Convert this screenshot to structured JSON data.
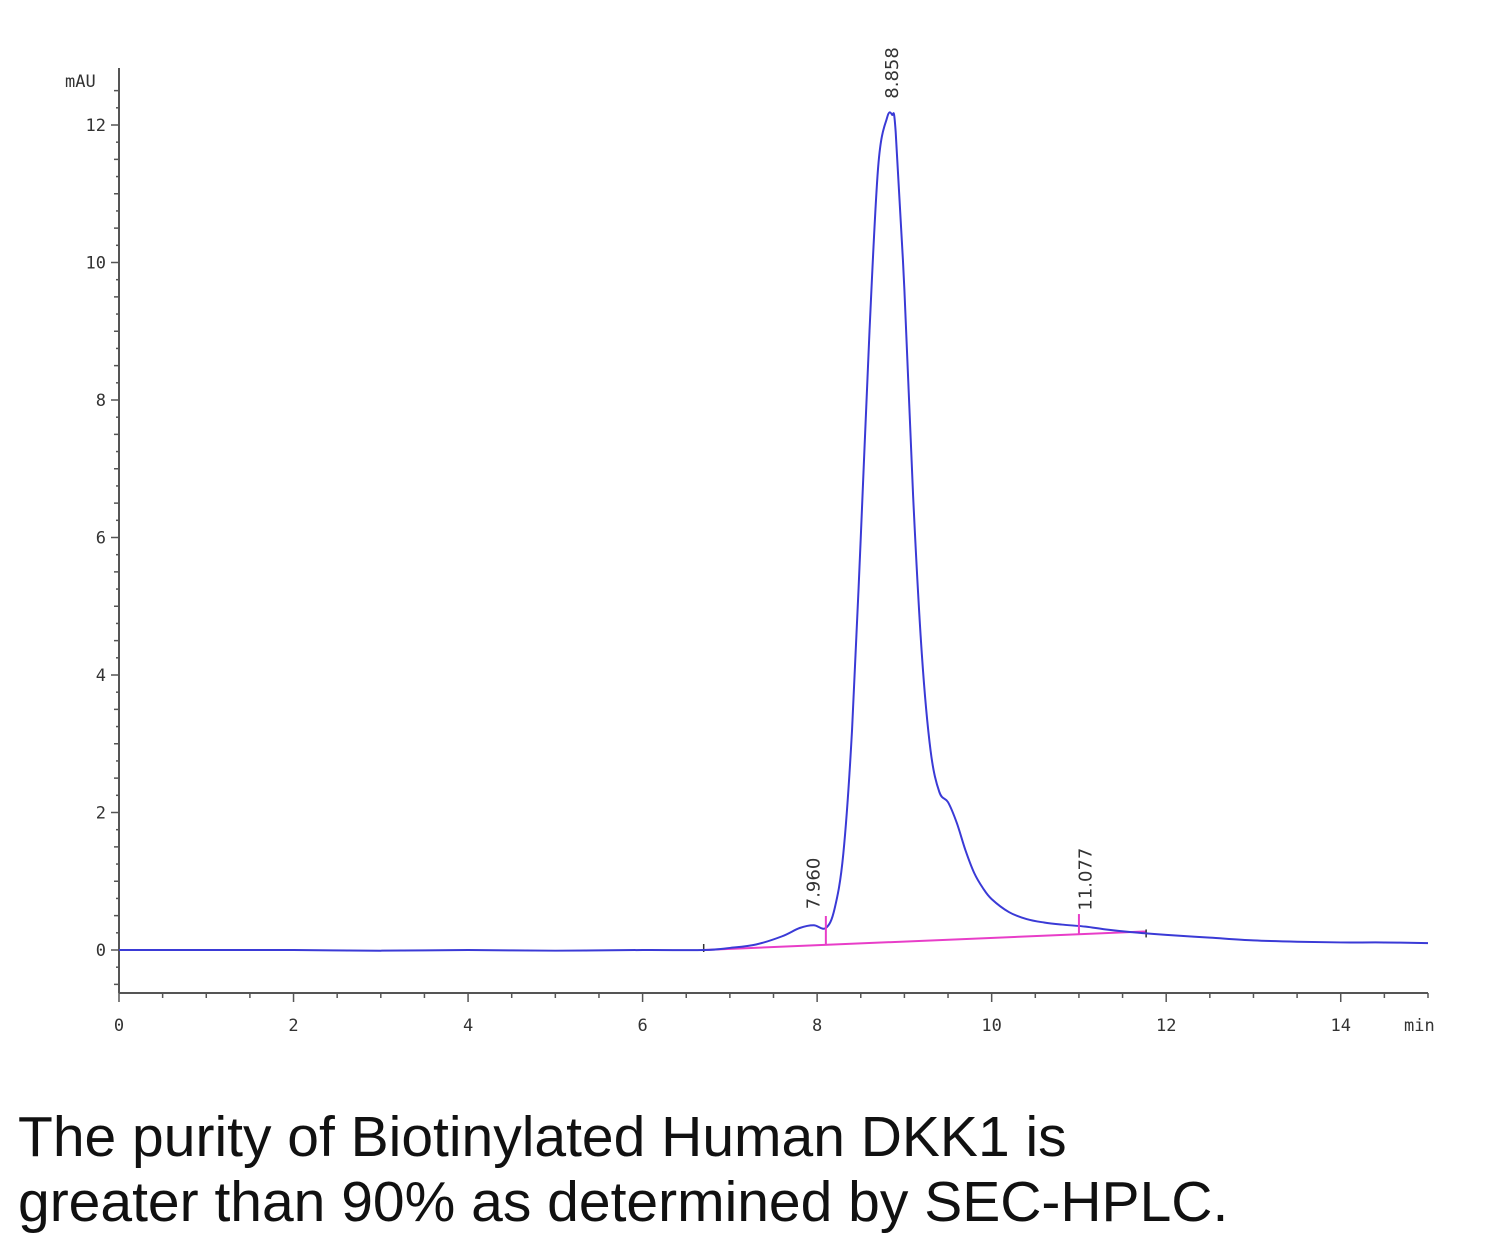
{
  "chart_data": {
    "type": "line",
    "ylabel": "mAU",
    "xlabel": "min",
    "xlim": [
      0,
      15
    ],
    "ylim": [
      -0.6,
      12.6
    ],
    "x_ticks": [
      0,
      2,
      4,
      6,
      8,
      10,
      12,
      14
    ],
    "y_ticks": [
      0,
      2,
      4,
      6,
      8,
      10,
      12
    ],
    "grid": false,
    "series": [
      {
        "color": "#3a3ad6",
        "x": [
          0,
          1,
          2,
          3,
          4,
          5,
          6,
          6.7,
          7.0,
          7.3,
          7.6,
          7.8,
          7.96,
          8.1,
          8.2,
          8.3,
          8.4,
          8.5,
          8.6,
          8.7,
          8.8,
          8.858,
          8.9,
          9.0,
          9.1,
          9.2,
          9.3,
          9.4,
          9.5,
          9.6,
          9.7,
          9.8,
          9.9,
          10.0,
          10.2,
          10.4,
          10.6,
          10.8,
          11.077,
          11.3,
          11.6,
          12.0,
          12.5,
          13.0,
          13.5,
          14.0,
          14.5,
          15.0
        ],
        "y": [
          0.0,
          0.0,
          0.0,
          -0.01,
          0.0,
          -0.01,
          0.0,
          0.0,
          0.03,
          0.08,
          0.2,
          0.32,
          0.36,
          0.32,
          0.6,
          1.4,
          3.2,
          6.0,
          9.0,
          11.4,
          12.1,
          12.15,
          11.9,
          9.6,
          6.6,
          4.3,
          2.9,
          2.3,
          2.15,
          1.85,
          1.45,
          1.12,
          0.9,
          0.74,
          0.55,
          0.45,
          0.4,
          0.37,
          0.34,
          0.3,
          0.26,
          0.22,
          0.18,
          0.14,
          0.12,
          0.11,
          0.11,
          0.1
        ]
      }
    ],
    "baseline": {
      "color": "#e83ec8",
      "x": [
        6.7,
        11.77
      ],
      "y": [
        0.0,
        0.27
      ]
    },
    "peaks": [
      {
        "label": "7.960",
        "x": 7.96,
        "y": 0.36,
        "drop_x": 8.1
      },
      {
        "label": "8.858",
        "x": 8.858,
        "y": 12.15,
        "drop_x": 8.858
      },
      {
        "label": "11.077",
        "x": 11.077,
        "y": 0.34,
        "drop_x": 11.0
      }
    ]
  },
  "caption": {
    "line1": "The purity of Biotinylated Human DKK1 is",
    "line2": "greater than 90% as determined by SEC-HPLC."
  }
}
